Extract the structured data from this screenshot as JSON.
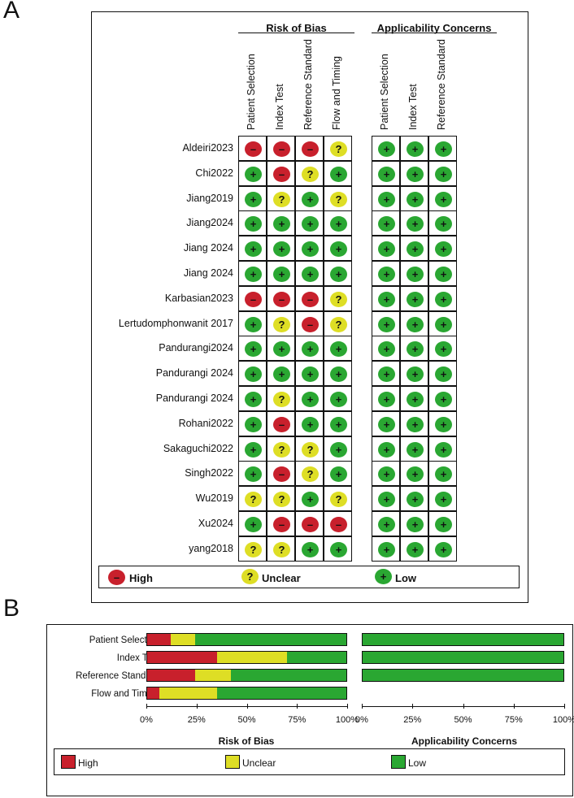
{
  "colors": {
    "high": "#c8202c",
    "unclear": "#dede25",
    "low": "#2aa732"
  },
  "panelA": {
    "letter": "A",
    "rob_header": "Risk of Bias",
    "app_header": "Applicability Concerns",
    "rob_columns": [
      "Patient Selection",
      "Index Test",
      "Reference Standard",
      "Flow and Timing"
    ],
    "app_columns": [
      "Patient Selection",
      "Index Test",
      "Reference Standard"
    ],
    "studies": [
      {
        "name": "Aldeiri2023",
        "rob": [
          "H",
          "H",
          "H",
          "U"
        ],
        "app": [
          "L",
          "L",
          "L"
        ]
      },
      {
        "name": "Chi2022",
        "rob": [
          "L",
          "H",
          "U",
          "L"
        ],
        "app": [
          "L",
          "L",
          "L"
        ]
      },
      {
        "name": "Jiang2019",
        "rob": [
          "L",
          "U",
          "L",
          "U"
        ],
        "app": [
          "L",
          "L",
          "L"
        ]
      },
      {
        "name": "Jiang2024",
        "rob": [
          "L",
          "L",
          "L",
          "L"
        ],
        "app": [
          "L",
          "L",
          "L"
        ]
      },
      {
        "name": "Jiang 2024",
        "rob": [
          "L",
          "L",
          "L",
          "L"
        ],
        "app": [
          "L",
          "L",
          "L"
        ]
      },
      {
        "name": "Jiang  2024",
        "rob": [
          "L",
          "L",
          "L",
          "L"
        ],
        "app": [
          "L",
          "L",
          "L"
        ]
      },
      {
        "name": "Karbasian2023",
        "rob": [
          "H",
          "H",
          "H",
          "U"
        ],
        "app": [
          "L",
          "L",
          "L"
        ]
      },
      {
        "name": "Lertudomphonwanit 2017",
        "rob": [
          "L",
          "U",
          "H",
          "U"
        ],
        "app": [
          "L",
          "L",
          "L"
        ]
      },
      {
        "name": "Pandurangi2024",
        "rob": [
          "L",
          "L",
          "L",
          "L"
        ],
        "app": [
          "L",
          "L",
          "L"
        ]
      },
      {
        "name": "Pandurangi 2024",
        "rob": [
          "L",
          "L",
          "L",
          "L"
        ],
        "app": [
          "L",
          "L",
          "L"
        ]
      },
      {
        "name": "Pandurangi  2024",
        "rob": [
          "L",
          "U",
          "L",
          "L"
        ],
        "app": [
          "L",
          "L",
          "L"
        ]
      },
      {
        "name": "Rohani2022",
        "rob": [
          "L",
          "H",
          "L",
          "L"
        ],
        "app": [
          "L",
          "L",
          "L"
        ]
      },
      {
        "name": "Sakaguchi2022",
        "rob": [
          "L",
          "U",
          "U",
          "L"
        ],
        "app": [
          "L",
          "L",
          "L"
        ]
      },
      {
        "name": "Singh2022",
        "rob": [
          "L",
          "H",
          "U",
          "L"
        ],
        "app": [
          "L",
          "L",
          "L"
        ]
      },
      {
        "name": "Wu2019",
        "rob": [
          "U",
          "U",
          "L",
          "U"
        ],
        "app": [
          "L",
          "L",
          "L"
        ]
      },
      {
        "name": "Xu2024",
        "rob": [
          "L",
          "H",
          "H",
          "H"
        ],
        "app": [
          "L",
          "L",
          "L"
        ]
      },
      {
        "name": "yang2018",
        "rob": [
          "U",
          "U",
          "L",
          "L"
        ],
        "app": [
          "L",
          "L",
          "L"
        ]
      }
    ],
    "symbols": {
      "H": "–",
      "U": "?",
      "L": "+"
    },
    "legend": {
      "high": "High",
      "unclear": "Unclear",
      "low": "Low"
    }
  },
  "chart_data": {
    "type": "bar",
    "stacked": true,
    "categories": [
      "Patient Selection",
      "Index Test",
      "Reference Standard",
      "Flow and Timing"
    ],
    "risk_of_bias": {
      "title": "Risk of Bias",
      "series": [
        {
          "name": "High",
          "values": [
            12,
            35,
            24,
            6
          ]
        },
        {
          "name": "Unclear",
          "values": [
            12,
            35,
            18,
            29
          ]
        },
        {
          "name": "Low",
          "values": [
            76,
            30,
            58,
            65
          ]
        }
      ]
    },
    "applicability_concerns": {
      "title": "Applicability Concerns",
      "categories": [
        "Patient Selection",
        "Index Test",
        "Reference Standard"
      ],
      "series": [
        {
          "name": "High",
          "values": [
            0,
            0,
            0
          ]
        },
        {
          "name": "Unclear",
          "values": [
            0,
            0,
            0
          ]
        },
        {
          "name": "Low",
          "values": [
            100,
            100,
            100
          ]
        }
      ]
    },
    "xticks": [
      "0%",
      "25%",
      "50%",
      "75%",
      "100%"
    ],
    "xlim": [
      0,
      100
    ],
    "legend": [
      "High",
      "Unclear",
      "Low"
    ],
    "legend_position": "bottom"
  },
  "panelB": {
    "letter": "B"
  }
}
